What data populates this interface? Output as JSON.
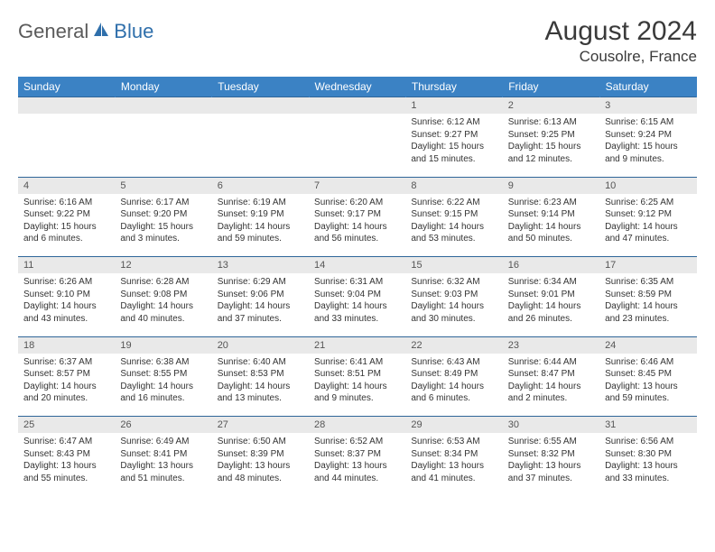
{
  "logo": {
    "general": "General",
    "blue": "Blue"
  },
  "title": "August 2024",
  "location": "Cousolre, France",
  "colors": {
    "header_bg": "#3b82c4",
    "header_text": "#ffffff",
    "daynum_bg": "#e9e9e9",
    "border": "#2f6699",
    "logo_gray": "#5a5a5a",
    "logo_blue": "#2f6fab"
  },
  "weekdays": [
    "Sunday",
    "Monday",
    "Tuesday",
    "Wednesday",
    "Thursday",
    "Friday",
    "Saturday"
  ],
  "weeks": [
    {
      "days": [
        null,
        null,
        null,
        null,
        {
          "n": "1",
          "sr": "6:12 AM",
          "ss": "9:27 PM",
          "dl": "15 hours and 15 minutes."
        },
        {
          "n": "2",
          "sr": "6:13 AM",
          "ss": "9:25 PM",
          "dl": "15 hours and 12 minutes."
        },
        {
          "n": "3",
          "sr": "6:15 AM",
          "ss": "9:24 PM",
          "dl": "15 hours and 9 minutes."
        }
      ]
    },
    {
      "days": [
        {
          "n": "4",
          "sr": "6:16 AM",
          "ss": "9:22 PM",
          "dl": "15 hours and 6 minutes."
        },
        {
          "n": "5",
          "sr": "6:17 AM",
          "ss": "9:20 PM",
          "dl": "15 hours and 3 minutes."
        },
        {
          "n": "6",
          "sr": "6:19 AM",
          "ss": "9:19 PM",
          "dl": "14 hours and 59 minutes."
        },
        {
          "n": "7",
          "sr": "6:20 AM",
          "ss": "9:17 PM",
          "dl": "14 hours and 56 minutes."
        },
        {
          "n": "8",
          "sr": "6:22 AM",
          "ss": "9:15 PM",
          "dl": "14 hours and 53 minutes."
        },
        {
          "n": "9",
          "sr": "6:23 AM",
          "ss": "9:14 PM",
          "dl": "14 hours and 50 minutes."
        },
        {
          "n": "10",
          "sr": "6:25 AM",
          "ss": "9:12 PM",
          "dl": "14 hours and 47 minutes."
        }
      ]
    },
    {
      "days": [
        {
          "n": "11",
          "sr": "6:26 AM",
          "ss": "9:10 PM",
          "dl": "14 hours and 43 minutes."
        },
        {
          "n": "12",
          "sr": "6:28 AM",
          "ss": "9:08 PM",
          "dl": "14 hours and 40 minutes."
        },
        {
          "n": "13",
          "sr": "6:29 AM",
          "ss": "9:06 PM",
          "dl": "14 hours and 37 minutes."
        },
        {
          "n": "14",
          "sr": "6:31 AM",
          "ss": "9:04 PM",
          "dl": "14 hours and 33 minutes."
        },
        {
          "n": "15",
          "sr": "6:32 AM",
          "ss": "9:03 PM",
          "dl": "14 hours and 30 minutes."
        },
        {
          "n": "16",
          "sr": "6:34 AM",
          "ss": "9:01 PM",
          "dl": "14 hours and 26 minutes."
        },
        {
          "n": "17",
          "sr": "6:35 AM",
          "ss": "8:59 PM",
          "dl": "14 hours and 23 minutes."
        }
      ]
    },
    {
      "days": [
        {
          "n": "18",
          "sr": "6:37 AM",
          "ss": "8:57 PM",
          "dl": "14 hours and 20 minutes."
        },
        {
          "n": "19",
          "sr": "6:38 AM",
          "ss": "8:55 PM",
          "dl": "14 hours and 16 minutes."
        },
        {
          "n": "20",
          "sr": "6:40 AM",
          "ss": "8:53 PM",
          "dl": "14 hours and 13 minutes."
        },
        {
          "n": "21",
          "sr": "6:41 AM",
          "ss": "8:51 PM",
          "dl": "14 hours and 9 minutes."
        },
        {
          "n": "22",
          "sr": "6:43 AM",
          "ss": "8:49 PM",
          "dl": "14 hours and 6 minutes."
        },
        {
          "n": "23",
          "sr": "6:44 AM",
          "ss": "8:47 PM",
          "dl": "14 hours and 2 minutes."
        },
        {
          "n": "24",
          "sr": "6:46 AM",
          "ss": "8:45 PM",
          "dl": "13 hours and 59 minutes."
        }
      ]
    },
    {
      "days": [
        {
          "n": "25",
          "sr": "6:47 AM",
          "ss": "8:43 PM",
          "dl": "13 hours and 55 minutes."
        },
        {
          "n": "26",
          "sr": "6:49 AM",
          "ss": "8:41 PM",
          "dl": "13 hours and 51 minutes."
        },
        {
          "n": "27",
          "sr": "6:50 AM",
          "ss": "8:39 PM",
          "dl": "13 hours and 48 minutes."
        },
        {
          "n": "28",
          "sr": "6:52 AM",
          "ss": "8:37 PM",
          "dl": "13 hours and 44 minutes."
        },
        {
          "n": "29",
          "sr": "6:53 AM",
          "ss": "8:34 PM",
          "dl": "13 hours and 41 minutes."
        },
        {
          "n": "30",
          "sr": "6:55 AM",
          "ss": "8:32 PM",
          "dl": "13 hours and 37 minutes."
        },
        {
          "n": "31",
          "sr": "6:56 AM",
          "ss": "8:30 PM",
          "dl": "13 hours and 33 minutes."
        }
      ]
    }
  ],
  "labels": {
    "sunrise": "Sunrise:",
    "sunset": "Sunset:",
    "daylight": "Daylight:"
  }
}
